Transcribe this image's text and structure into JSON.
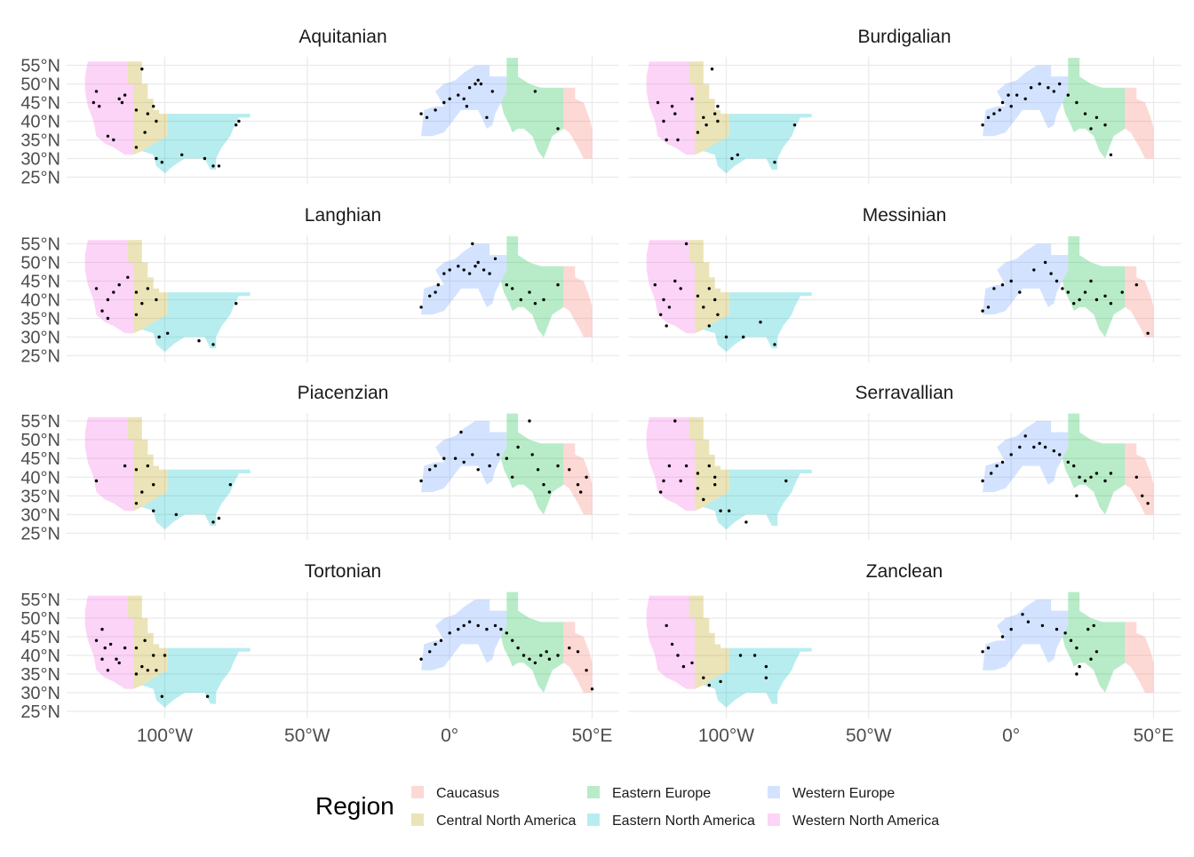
{
  "x_ticks": [
    {
      "value": -100,
      "label": "100°W"
    },
    {
      "value": -50,
      "label": "50°W"
    },
    {
      "value": 0,
      "label": "0°"
    },
    {
      "value": 50,
      "label": "50°E"
    }
  ],
  "y_ticks": [
    {
      "value": 55,
      "label": "55°N"
    },
    {
      "value": 50,
      "label": "50°N"
    },
    {
      "value": 45,
      "label": "45°N"
    },
    {
      "value": 40,
      "label": "40°N"
    },
    {
      "value": 35,
      "label": "35°N"
    },
    {
      "value": 30,
      "label": "30°N"
    },
    {
      "value": 25,
      "label": "25°N"
    }
  ],
  "legend": {
    "title": "Region",
    "entries": [
      {
        "key": "caucasus",
        "label": "Caucasus",
        "color": "#f8766d"
      },
      {
        "key": "cna",
        "label": "Central North America",
        "color": "#b79f00"
      },
      {
        "key": "ee",
        "label": "Eastern Europe",
        "color": "#00ba38"
      },
      {
        "key": "ena",
        "label": "Eastern North America",
        "color": "#00bfc4"
      },
      {
        "key": "we",
        "label": "Western Europe",
        "color": "#619cff"
      },
      {
        "key": "wna",
        "label": "Western North America",
        "color": "#f564e3"
      }
    ]
  },
  "panels": [
    {
      "title": "Aquitanian",
      "sites": [
        [
          -124,
          48
        ],
        [
          -125,
          45
        ],
        [
          -123,
          44
        ],
        [
          -116,
          46
        ],
        [
          -114,
          47
        ],
        [
          -115,
          45
        ],
        [
          -120,
          36
        ],
        [
          -118,
          35
        ],
        [
          -108,
          54
        ],
        [
          -110,
          43
        ],
        [
          -106,
          42
        ],
        [
          -104,
          44
        ],
        [
          -103,
          40
        ],
        [
          -107,
          37
        ],
        [
          -110,
          33
        ],
        [
          -103,
          30
        ],
        [
          -101,
          29
        ],
        [
          -94,
          31
        ],
        [
          -86,
          30
        ],
        [
          -83,
          28
        ],
        [
          -81,
          28
        ],
        [
          -75,
          39
        ],
        [
          -74,
          40
        ],
        [
          -10,
          42
        ],
        [
          -8,
          41
        ],
        [
          -5,
          43
        ],
        [
          -2,
          45
        ],
        [
          0,
          46
        ],
        [
          3,
          47
        ],
        [
          5,
          46
        ],
        [
          7,
          49
        ],
        [
          9,
          50
        ],
        [
          10,
          51
        ],
        [
          11,
          50
        ],
        [
          15,
          48
        ],
        [
          6,
          44
        ],
        [
          13,
          41
        ],
        [
          30,
          48
        ],
        [
          38,
          38
        ]
      ]
    },
    {
      "title": "Burdigalian",
      "sites": [
        [
          -124,
          45
        ],
        [
          -119,
          44
        ],
        [
          -122,
          40
        ],
        [
          -118,
          42
        ],
        [
          -121,
          35
        ],
        [
          -117,
          35
        ],
        [
          -112,
          46
        ],
        [
          -108,
          41
        ],
        [
          -104,
          42
        ],
        [
          -103,
          40
        ],
        [
          -107,
          39
        ],
        [
          -110,
          37
        ],
        [
          -103,
          44
        ],
        [
          -105,
          54
        ],
        [
          -98,
          30
        ],
        [
          -96,
          31
        ],
        [
          -83,
          29
        ],
        [
          -76,
          39
        ],
        [
          -10,
          39
        ],
        [
          -8,
          41
        ],
        [
          -6,
          42
        ],
        [
          -4,
          43
        ],
        [
          -3,
          45
        ],
        [
          0,
          44
        ],
        [
          2,
          47
        ],
        [
          5,
          46
        ],
        [
          7,
          49
        ],
        [
          10,
          50
        ],
        [
          13,
          49
        ],
        [
          17,
          50
        ],
        [
          15,
          48
        ],
        [
          20,
          47
        ],
        [
          23,
          45
        ],
        [
          26,
          42
        ],
        [
          30,
          41
        ],
        [
          33,
          39
        ],
        [
          28,
          38
        ],
        [
          35,
          31
        ],
        [
          -1,
          47
        ]
      ]
    },
    {
      "title": "Langhian",
      "sites": [
        [
          -124,
          43
        ],
        [
          -120,
          40
        ],
        [
          -118,
          42
        ],
        [
          -122,
          37
        ],
        [
          -120,
          35
        ],
        [
          -116,
          44
        ],
        [
          -113,
          46
        ],
        [
          -110,
          42
        ],
        [
          -106,
          43
        ],
        [
          -108,
          39
        ],
        [
          -103,
          40
        ],
        [
          -110,
          36
        ],
        [
          -102,
          30
        ],
        [
          -99,
          31
        ],
        [
          -88,
          29
        ],
        [
          -83,
          28
        ],
        [
          -75,
          39
        ],
        [
          -10,
          38
        ],
        [
          -7,
          41
        ],
        [
          -5,
          42
        ],
        [
          -4,
          44
        ],
        [
          -2,
          47
        ],
        [
          0,
          48
        ],
        [
          3,
          49
        ],
        [
          5,
          48
        ],
        [
          7,
          47
        ],
        [
          9,
          49
        ],
        [
          10,
          50
        ],
        [
          12,
          48
        ],
        [
          14,
          47
        ],
        [
          16,
          51
        ],
        [
          8,
          55
        ],
        [
          20,
          44
        ],
        [
          22,
          43
        ],
        [
          25,
          40
        ],
        [
          28,
          42
        ],
        [
          30,
          39
        ],
        [
          33,
          40
        ],
        [
          38,
          44
        ]
      ]
    },
    {
      "title": "Messinian",
      "sites": [
        [
          -125,
          44
        ],
        [
          -122,
          40
        ],
        [
          -120,
          38
        ],
        [
          -123,
          36
        ],
        [
          -118,
          45
        ],
        [
          -116,
          43
        ],
        [
          -121,
          33
        ],
        [
          -114,
          55
        ],
        [
          -110,
          41
        ],
        [
          -106,
          43
        ],
        [
          -104,
          40
        ],
        [
          -108,
          38
        ],
        [
          -103,
          36
        ],
        [
          -106,
          33
        ],
        [
          -100,
          30
        ],
        [
          -94,
          30
        ],
        [
          -88,
          34
        ],
        [
          -83,
          28
        ],
        [
          -10,
          37
        ],
        [
          -8,
          38
        ],
        [
          -6,
          43
        ],
        [
          -3,
          44
        ],
        [
          0,
          45
        ],
        [
          3,
          42
        ],
        [
          8,
          48
        ],
        [
          12,
          50
        ],
        [
          14,
          47
        ],
        [
          16,
          45
        ],
        [
          18,
          43
        ],
        [
          20,
          42
        ],
        [
          22,
          39
        ],
        [
          24,
          40
        ],
        [
          26,
          42
        ],
        [
          28,
          45
        ],
        [
          30,
          40
        ],
        [
          33,
          41
        ],
        [
          35,
          39
        ],
        [
          39,
          42
        ],
        [
          44,
          44
        ],
        [
          48,
          31
        ]
      ]
    },
    {
      "title": "Piacenzian",
      "sites": [
        [
          -124,
          39
        ],
        [
          -114,
          43
        ],
        [
          -110,
          42
        ],
        [
          -106,
          43
        ],
        [
          -108,
          36
        ],
        [
          -104,
          38
        ],
        [
          -110,
          33
        ],
        [
          -104,
          31
        ],
        [
          -96,
          30
        ],
        [
          -83,
          28
        ],
        [
          -81,
          29
        ],
        [
          -77,
          38
        ],
        [
          -10,
          39
        ],
        [
          -7,
          42
        ],
        [
          -5,
          43
        ],
        [
          -2,
          45
        ],
        [
          2,
          45
        ],
        [
          5,
          44
        ],
        [
          4,
          52
        ],
        [
          8,
          46
        ],
        [
          10,
          42
        ],
        [
          14,
          43
        ],
        [
          17,
          46
        ],
        [
          20,
          45
        ],
        [
          22,
          40
        ],
        [
          24,
          48
        ],
        [
          28,
          55
        ],
        [
          29,
          46
        ],
        [
          31,
          42
        ],
        [
          33,
          38
        ],
        [
          35,
          36
        ],
        [
          38,
          43
        ],
        [
          42,
          42
        ],
        [
          45,
          38
        ],
        [
          48,
          40
        ],
        [
          46,
          36
        ]
      ]
    },
    {
      "title": "Serravallian",
      "sites": [
        [
          -118,
          55
        ],
        [
          -122,
          39
        ],
        [
          -120,
          43
        ],
        [
          -123,
          36
        ],
        [
          -116,
          39
        ],
        [
          -114,
          43
        ],
        [
          -110,
          41
        ],
        [
          -106,
          43
        ],
        [
          -104,
          40
        ],
        [
          -110,
          37
        ],
        [
          -108,
          34
        ],
        [
          -104,
          38
        ],
        [
          -102,
          31
        ],
        [
          -99,
          31
        ],
        [
          -93,
          28
        ],
        [
          -79,
          39
        ],
        [
          -10,
          39
        ],
        [
          -7,
          41
        ],
        [
          -5,
          43
        ],
        [
          -3,
          44
        ],
        [
          0,
          46
        ],
        [
          3,
          48
        ],
        [
          5,
          51
        ],
        [
          8,
          48
        ],
        [
          10,
          49
        ],
        [
          12,
          48
        ],
        [
          15,
          47
        ],
        [
          17,
          46
        ],
        [
          20,
          44
        ],
        [
          22,
          43
        ],
        [
          24,
          40
        ],
        [
          26,
          39
        ],
        [
          28,
          40
        ],
        [
          30,
          41
        ],
        [
          33,
          39
        ],
        [
          35,
          41
        ],
        [
          23,
          35
        ],
        [
          44,
          40
        ],
        [
          48,
          33
        ],
        [
          46,
          35
        ]
      ]
    },
    {
      "title": "Tortonian",
      "sites": [
        [
          -124,
          44
        ],
        [
          -122,
          47
        ],
        [
          -121,
          42
        ],
        [
          -122,
          39
        ],
        [
          -119,
          43
        ],
        [
          -117,
          39
        ],
        [
          -120,
          36
        ],
        [
          -116,
          38
        ],
        [
          -114,
          42
        ],
        [
          -110,
          42
        ],
        [
          -107,
          44
        ],
        [
          -104,
          40
        ],
        [
          -108,
          37
        ],
        [
          -106,
          36
        ],
        [
          -100,
          40
        ],
        [
          -103,
          36
        ],
        [
          -110,
          35
        ],
        [
          -101,
          29
        ],
        [
          -85,
          29
        ],
        [
          -10,
          39
        ],
        [
          -7,
          41
        ],
        [
          -5,
          43
        ],
        [
          -3,
          44
        ],
        [
          0,
          46
        ],
        [
          3,
          47
        ],
        [
          5,
          48
        ],
        [
          7,
          49
        ],
        [
          10,
          48
        ],
        [
          13,
          47
        ],
        [
          16,
          48
        ],
        [
          18,
          47
        ],
        [
          20,
          46
        ],
        [
          22,
          44
        ],
        [
          24,
          42
        ],
        [
          26,
          40
        ],
        [
          28,
          39
        ],
        [
          30,
          38
        ],
        [
          32,
          40
        ],
        [
          34,
          41
        ],
        [
          35,
          39
        ],
        [
          38,
          40
        ],
        [
          42,
          42
        ],
        [
          45,
          41
        ],
        [
          48,
          36
        ],
        [
          50,
          31
        ]
      ]
    },
    {
      "title": "Zanclean",
      "sites": [
        [
          -121,
          48
        ],
        [
          -119,
          43
        ],
        [
          -117,
          40
        ],
        [
          -115,
          37
        ],
        [
          -112,
          38
        ],
        [
          -108,
          34
        ],
        [
          -106,
          32
        ],
        [
          -102,
          33
        ],
        [
          -95,
          40
        ],
        [
          -90,
          40
        ],
        [
          -86,
          37
        ],
        [
          -86,
          34
        ],
        [
          -10,
          41
        ],
        [
          -8,
          42
        ],
        [
          -3,
          45
        ],
        [
          0,
          47
        ],
        [
          4,
          51
        ],
        [
          6,
          49
        ],
        [
          11,
          48
        ],
        [
          16,
          47
        ],
        [
          19,
          46
        ],
        [
          21,
          44
        ],
        [
          23,
          42
        ],
        [
          27,
          47
        ],
        [
          29,
          48
        ],
        [
          30,
          41
        ],
        [
          28,
          39
        ],
        [
          24,
          37
        ],
        [
          23,
          35
        ]
      ]
    }
  ]
}
